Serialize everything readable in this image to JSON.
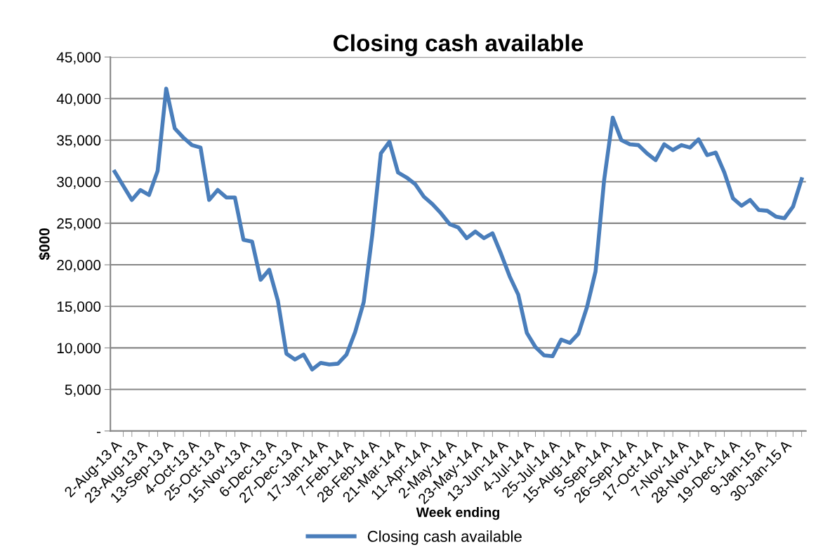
{
  "chart_data": {
    "type": "line",
    "title": "Closing cash available",
    "xlabel": "Week ending",
    "ylabel": "$000",
    "categories": [
      "2-Aug-13 A",
      null,
      null,
      "23-Aug-13 A",
      null,
      null,
      "13-Sep-13 A",
      null,
      null,
      "4-Oct-13 A",
      null,
      null,
      "25-Oct-13 A",
      null,
      null,
      "15-Nov-13 A",
      null,
      null,
      "6-Dec-13 A",
      null,
      null,
      "27-Dec-13 A",
      null,
      null,
      "17-Jan-14 A",
      null,
      null,
      "7-Feb-14 A",
      null,
      null,
      "28-Feb-14 A",
      null,
      null,
      "21-Mar-14 A",
      null,
      null,
      "11-Apr-14 A",
      null,
      null,
      "2-May-14 A",
      null,
      null,
      "23-May-14 A",
      null,
      null,
      "13-Jun-14 A",
      null,
      null,
      "4-Jul-14 A",
      null,
      null,
      "25-Jul-14 A",
      null,
      null,
      "15-Aug-14 A",
      null,
      null,
      "5-Sep-14 A",
      null,
      null,
      "26-Sep-14 A",
      null,
      null,
      "17-Oct-14 A",
      null,
      null,
      "7-Nov-14 A",
      null,
      null,
      "28-Nov-14 A",
      null,
      null,
      "19-Dec-14 A",
      null,
      null,
      "9-Jan-15 A",
      null,
      null,
      "30-Jan-15 A",
      null,
      null
    ],
    "series": [
      {
        "name": "Closing cash available",
        "color": "#4a7ebb",
        "values": [
          31200,
          29500,
          27800,
          29000,
          28400,
          31300,
          41200,
          36400,
          35300,
          34400,
          34100,
          27800,
          29000,
          28100,
          28100,
          23000,
          22800,
          18200,
          19400,
          15700,
          9300,
          8600,
          9200,
          7400,
          8200,
          8000,
          8100,
          9200,
          11900,
          15500,
          23600,
          33400,
          34800,
          31100,
          30500,
          29700,
          28200,
          27300,
          26200,
          24900,
          24500,
          23200,
          24000,
          23200,
          23800,
          21300,
          18600,
          16400,
          11800,
          10100,
          9100,
          9000,
          11000,
          10600,
          11700,
          14900,
          19200,
          30200,
          37700,
          35000,
          34500,
          34400,
          33400,
          32600,
          34500,
          33800,
          34400,
          34100,
          35100,
          33200,
          33500,
          31100,
          28000,
          27100,
          27800,
          26600,
          26500,
          25800,
          25600,
          27000,
          30300
        ]
      }
    ],
    "ylim": [
      0,
      45000
    ],
    "yticks": [
      {
        "value": 0,
        "label": "-"
      },
      {
        "value": 5000,
        "label": "5,000"
      },
      {
        "value": 10000,
        "label": "10,000"
      },
      {
        "value": 15000,
        "label": "15,000"
      },
      {
        "value": 20000,
        "label": "20,000"
      },
      {
        "value": 25000,
        "label": "25,000"
      },
      {
        "value": 30000,
        "label": "30,000"
      },
      {
        "value": 35000,
        "label": "35,000"
      },
      {
        "value": 40000,
        "label": "40,000"
      },
      {
        "value": 45000,
        "label": "45,000"
      }
    ],
    "grid": "y",
    "legend": "bottom",
    "marker": "none",
    "line_style": "solid"
  }
}
